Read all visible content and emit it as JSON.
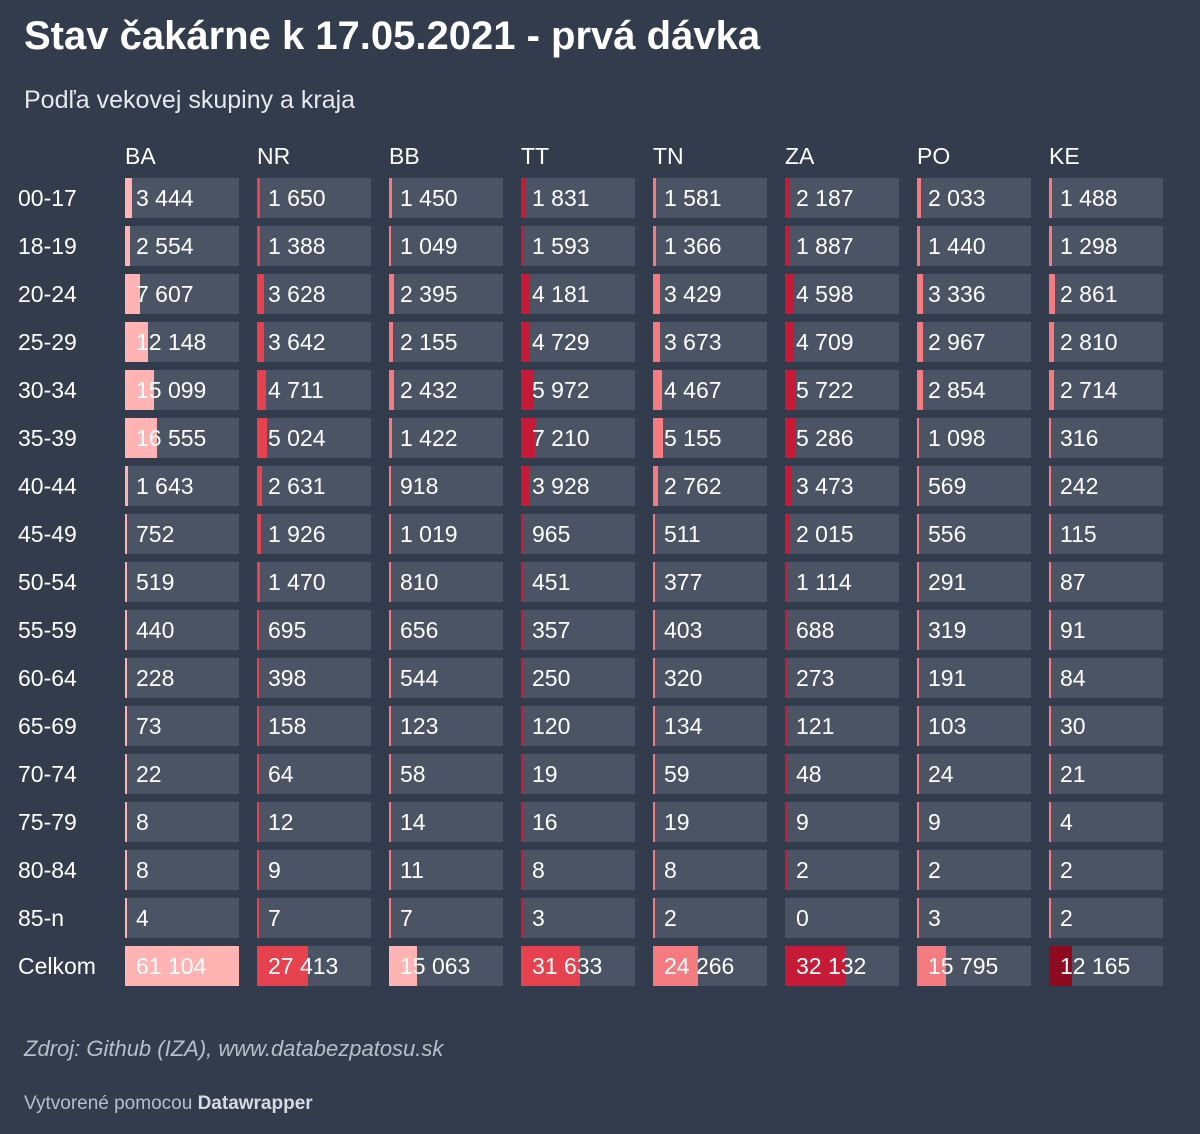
{
  "title": "Stav čakárne k 17.05.2021 - prvá dávka",
  "subtitle": "Podľa vekovej skupiny a kraja",
  "source": "Zdroj: Github (IZA), www.databezpatosu.sk",
  "credit": {
    "prefix": "Vytvorené pomocou",
    "brand": "Datawrapper"
  },
  "colors": {
    "background": "#333c4c",
    "cell_background": "#4b5465",
    "scale": [
      "#ffb3b3",
      "#f47b80",
      "#e6414f",
      "#c51b37",
      "#8d0a1f"
    ]
  },
  "chart_data": {
    "type": "table",
    "title": "Stav čakárne k 17.05.2021 - prvá dávka",
    "subtitle": "Podľa vekovej skupiny a kraja",
    "columns": [
      "BA",
      "NR",
      "BB",
      "TT",
      "TN",
      "ZA",
      "PO",
      "KE"
    ],
    "rows": [
      {
        "label": "00-17",
        "values": [
          "3 444",
          "1 650",
          "1 450",
          "1 831",
          "1 581",
          "2 187",
          "2 033",
          "1 488"
        ]
      },
      {
        "label": "18-19",
        "values": [
          "2 554",
          "1 388",
          "1 049",
          "1 593",
          "1 366",
          "1 887",
          "1 440",
          "1 298"
        ]
      },
      {
        "label": "20-24",
        "values": [
          "7 607",
          "3 628",
          "2 395",
          "4 181",
          "3 429",
          "4 598",
          "3 336",
          "2 861"
        ]
      },
      {
        "label": "25-29",
        "values": [
          "12 148",
          "3 642",
          "2 155",
          "4 729",
          "3 673",
          "4 709",
          "2 967",
          "2 810"
        ]
      },
      {
        "label": "30-34",
        "values": [
          "15 099",
          "4 711",
          "2 432",
          "5 972",
          "4 467",
          "5 722",
          "2 854",
          "2 714"
        ]
      },
      {
        "label": "35-39",
        "values": [
          "16 555",
          "5 024",
          "1 422",
          "7 210",
          "5 155",
          "5 286",
          "1 098",
          "316"
        ]
      },
      {
        "label": "40-44",
        "values": [
          "1 643",
          "2 631",
          "918",
          "3 928",
          "2 762",
          "3 473",
          "569",
          "242"
        ]
      },
      {
        "label": "45-49",
        "values": [
          "752",
          "1 926",
          "1 019",
          "965",
          "511",
          "2 015",
          "556",
          "115"
        ]
      },
      {
        "label": "50-54",
        "values": [
          "519",
          "1 470",
          "810",
          "451",
          "377",
          "1 114",
          "291",
          "87"
        ]
      },
      {
        "label": "55-59",
        "values": [
          "440",
          "695",
          "656",
          "357",
          "403",
          "688",
          "319",
          "91"
        ]
      },
      {
        "label": "60-64",
        "values": [
          "228",
          "398",
          "544",
          "250",
          "320",
          "273",
          "191",
          "84"
        ]
      },
      {
        "label": "65-69",
        "values": [
          "73",
          "158",
          "123",
          "120",
          "134",
          "121",
          "103",
          "30"
        ]
      },
      {
        "label": "70-74",
        "values": [
          "22",
          "64",
          "58",
          "19",
          "59",
          "48",
          "24",
          "21"
        ]
      },
      {
        "label": "75-79",
        "values": [
          "8",
          "12",
          "14",
          "16",
          "19",
          "9",
          "9",
          "4"
        ]
      },
      {
        "label": "80-84",
        "values": [
          "8",
          "9",
          "11",
          "8",
          "8",
          "2",
          "2",
          "2"
        ]
      },
      {
        "label": "85-n",
        "values": [
          "4",
          "7",
          "7",
          "3",
          "2",
          "0",
          "3",
          "2"
        ]
      },
      {
        "label": "Celkom",
        "values": [
          "61 104",
          "27 413",
          "15 063",
          "31 633",
          "24 266",
          "32 132",
          "15 795",
          "12 165"
        ],
        "is_total": true
      }
    ]
  }
}
